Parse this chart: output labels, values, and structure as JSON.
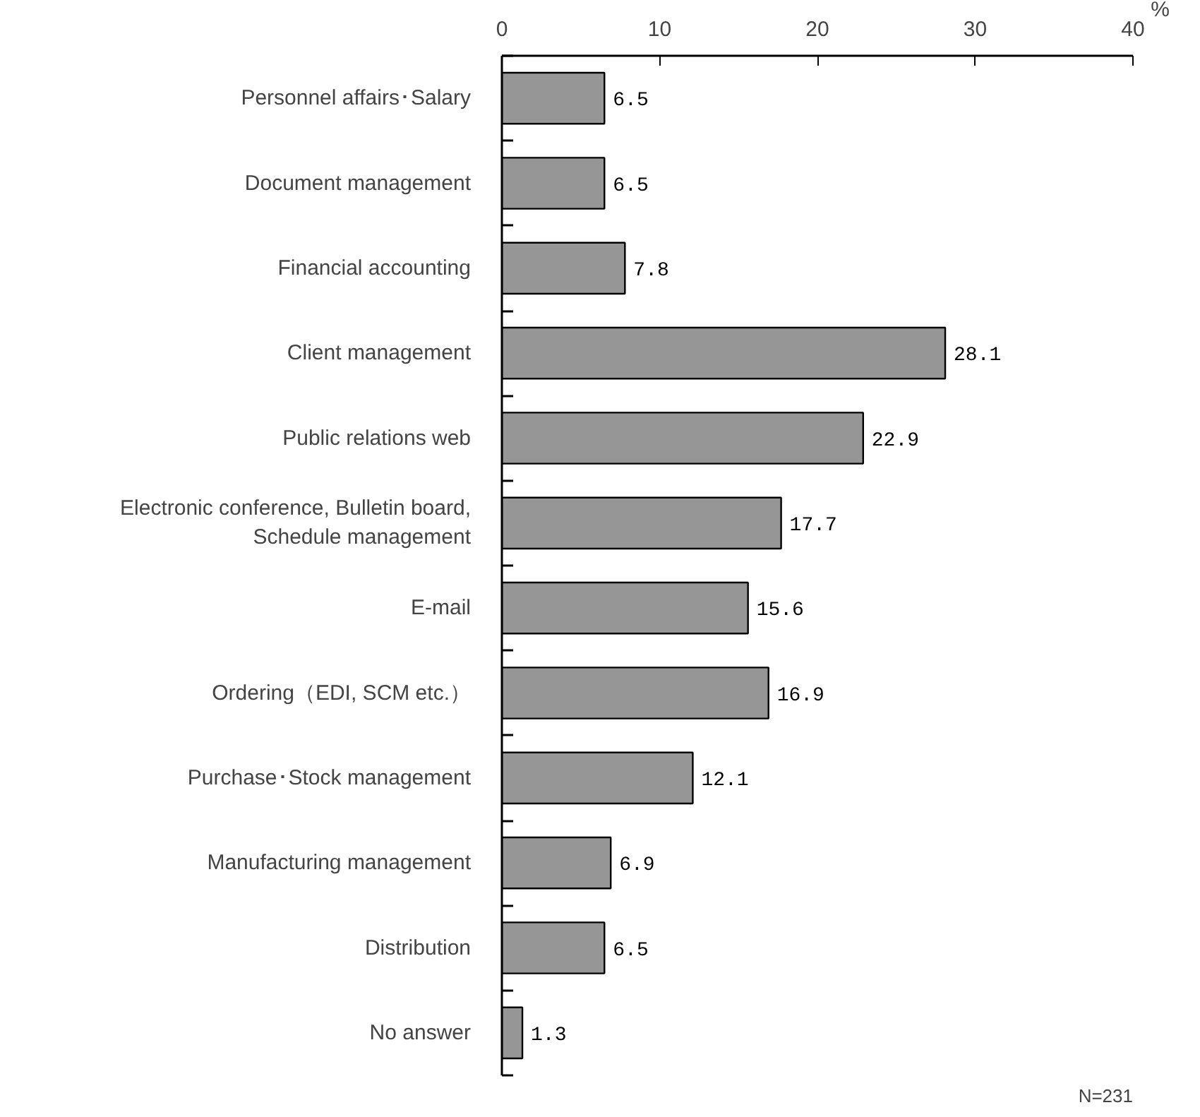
{
  "chart_data": {
    "type": "bar",
    "orientation": "horizontal",
    "xlabel": "%",
    "categories": [
      "Personnel affairs･Salary",
      "Document management",
      "Financial accounting",
      "Client management",
      "Public relations web",
      "Electronic conference, Bulletin board,\nSchedule management",
      "E-mail",
      "Ordering（EDI, SCM etc.）",
      "Purchase･Stock management",
      "Manufacturing management",
      "Distribution",
      "No answer"
    ],
    "values": [
      6.5,
      6.5,
      7.8,
      28.1,
      22.9,
      17.7,
      15.6,
      16.9,
      12.1,
      6.9,
      6.5,
      1.3
    ],
    "color": "#969696",
    "xlim": [
      0,
      40
    ],
    "xticks": [
      0,
      10,
      20,
      30,
      40
    ],
    "grid": false,
    "data_labels": true,
    "annotations": [
      "N=231"
    ]
  }
}
